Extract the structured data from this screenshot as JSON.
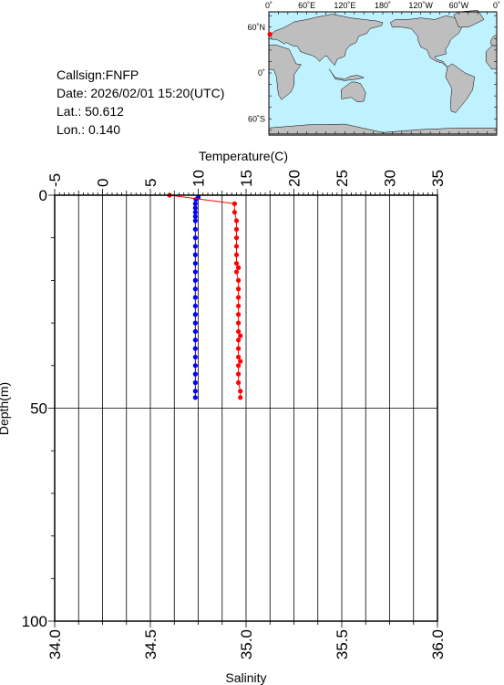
{
  "station": {
    "callsign": "Callsign:FNFP",
    "date": "Date:  2026/02/01 15:20(UTC)",
    "lat": "Lat.:   50.612",
    "lon": "Lon.:    0.140"
  },
  "map": {
    "top_labels": [
      "0˚",
      "60˚E",
      "120˚E",
      "180˚",
      "120˚W",
      "60˚W",
      "0˚"
    ],
    "left_labels": [
      "60˚N",
      "0˚",
      "60˚S"
    ],
    "ocean_color": "#bff1ff",
    "land_color": "#bebebe",
    "marker": {
      "lat": 50.612,
      "lon": 0.14,
      "color": "#ff0000"
    }
  },
  "chart_data": {
    "type": "scatter",
    "temperature_axis": {
      "label": "Temperature(C)",
      "range": [
        -5,
        35
      ],
      "ticks": [
        "-5",
        "0",
        "5",
        "10",
        "15",
        "20",
        "25",
        "30",
        "35"
      ]
    },
    "salinity_axis": {
      "label": "Salinity",
      "range": [
        34.0,
        36.0
      ],
      "ticks": [
        "34.0",
        "34.5",
        "35.0",
        "35.5",
        "36.0"
      ]
    },
    "depth_axis": {
      "label": "Depth(m)",
      "range": [
        0,
        100
      ],
      "inverted": true,
      "ticks": [
        "0",
        "50",
        "100"
      ]
    },
    "grid": true,
    "series": [
      {
        "quantity": "temperature",
        "color": "#0000ff",
        "depth": [
          0.5,
          1,
          2,
          3,
          4,
          5,
          6,
          8,
          10,
          12,
          14,
          16,
          18,
          20,
          22,
          24,
          26,
          28,
          30,
          32,
          34,
          36,
          38,
          40,
          42,
          44,
          46,
          47.5
        ],
        "values": [
          10.0,
          9.75,
          9.7,
          9.7,
          9.7,
          9.7,
          9.7,
          9.7,
          9.7,
          9.7,
          9.7,
          9.7,
          9.7,
          9.7,
          9.7,
          9.7,
          9.7,
          9.7,
          9.7,
          9.7,
          9.7,
          9.7,
          9.7,
          9.7,
          9.7,
          9.7,
          9.7,
          9.7
        ]
      },
      {
        "quantity": "salinity",
        "color": "#ff0000",
        "depth": [
          0,
          2,
          4,
          6,
          8,
          10,
          12,
          14,
          16,
          17,
          18,
          20,
          22,
          24,
          26,
          28,
          30,
          32,
          33,
          34,
          36,
          38,
          39,
          40,
          42,
          44,
          46,
          47.5
        ],
        "values": [
          34.6,
          34.94,
          34.94,
          34.95,
          34.95,
          34.95,
          34.95,
          34.95,
          34.95,
          34.96,
          34.95,
          34.96,
          34.96,
          34.96,
          34.96,
          34.96,
          34.96,
          34.96,
          34.97,
          34.96,
          34.96,
          34.96,
          34.97,
          34.96,
          34.96,
          34.96,
          34.97,
          34.97
        ]
      }
    ]
  }
}
